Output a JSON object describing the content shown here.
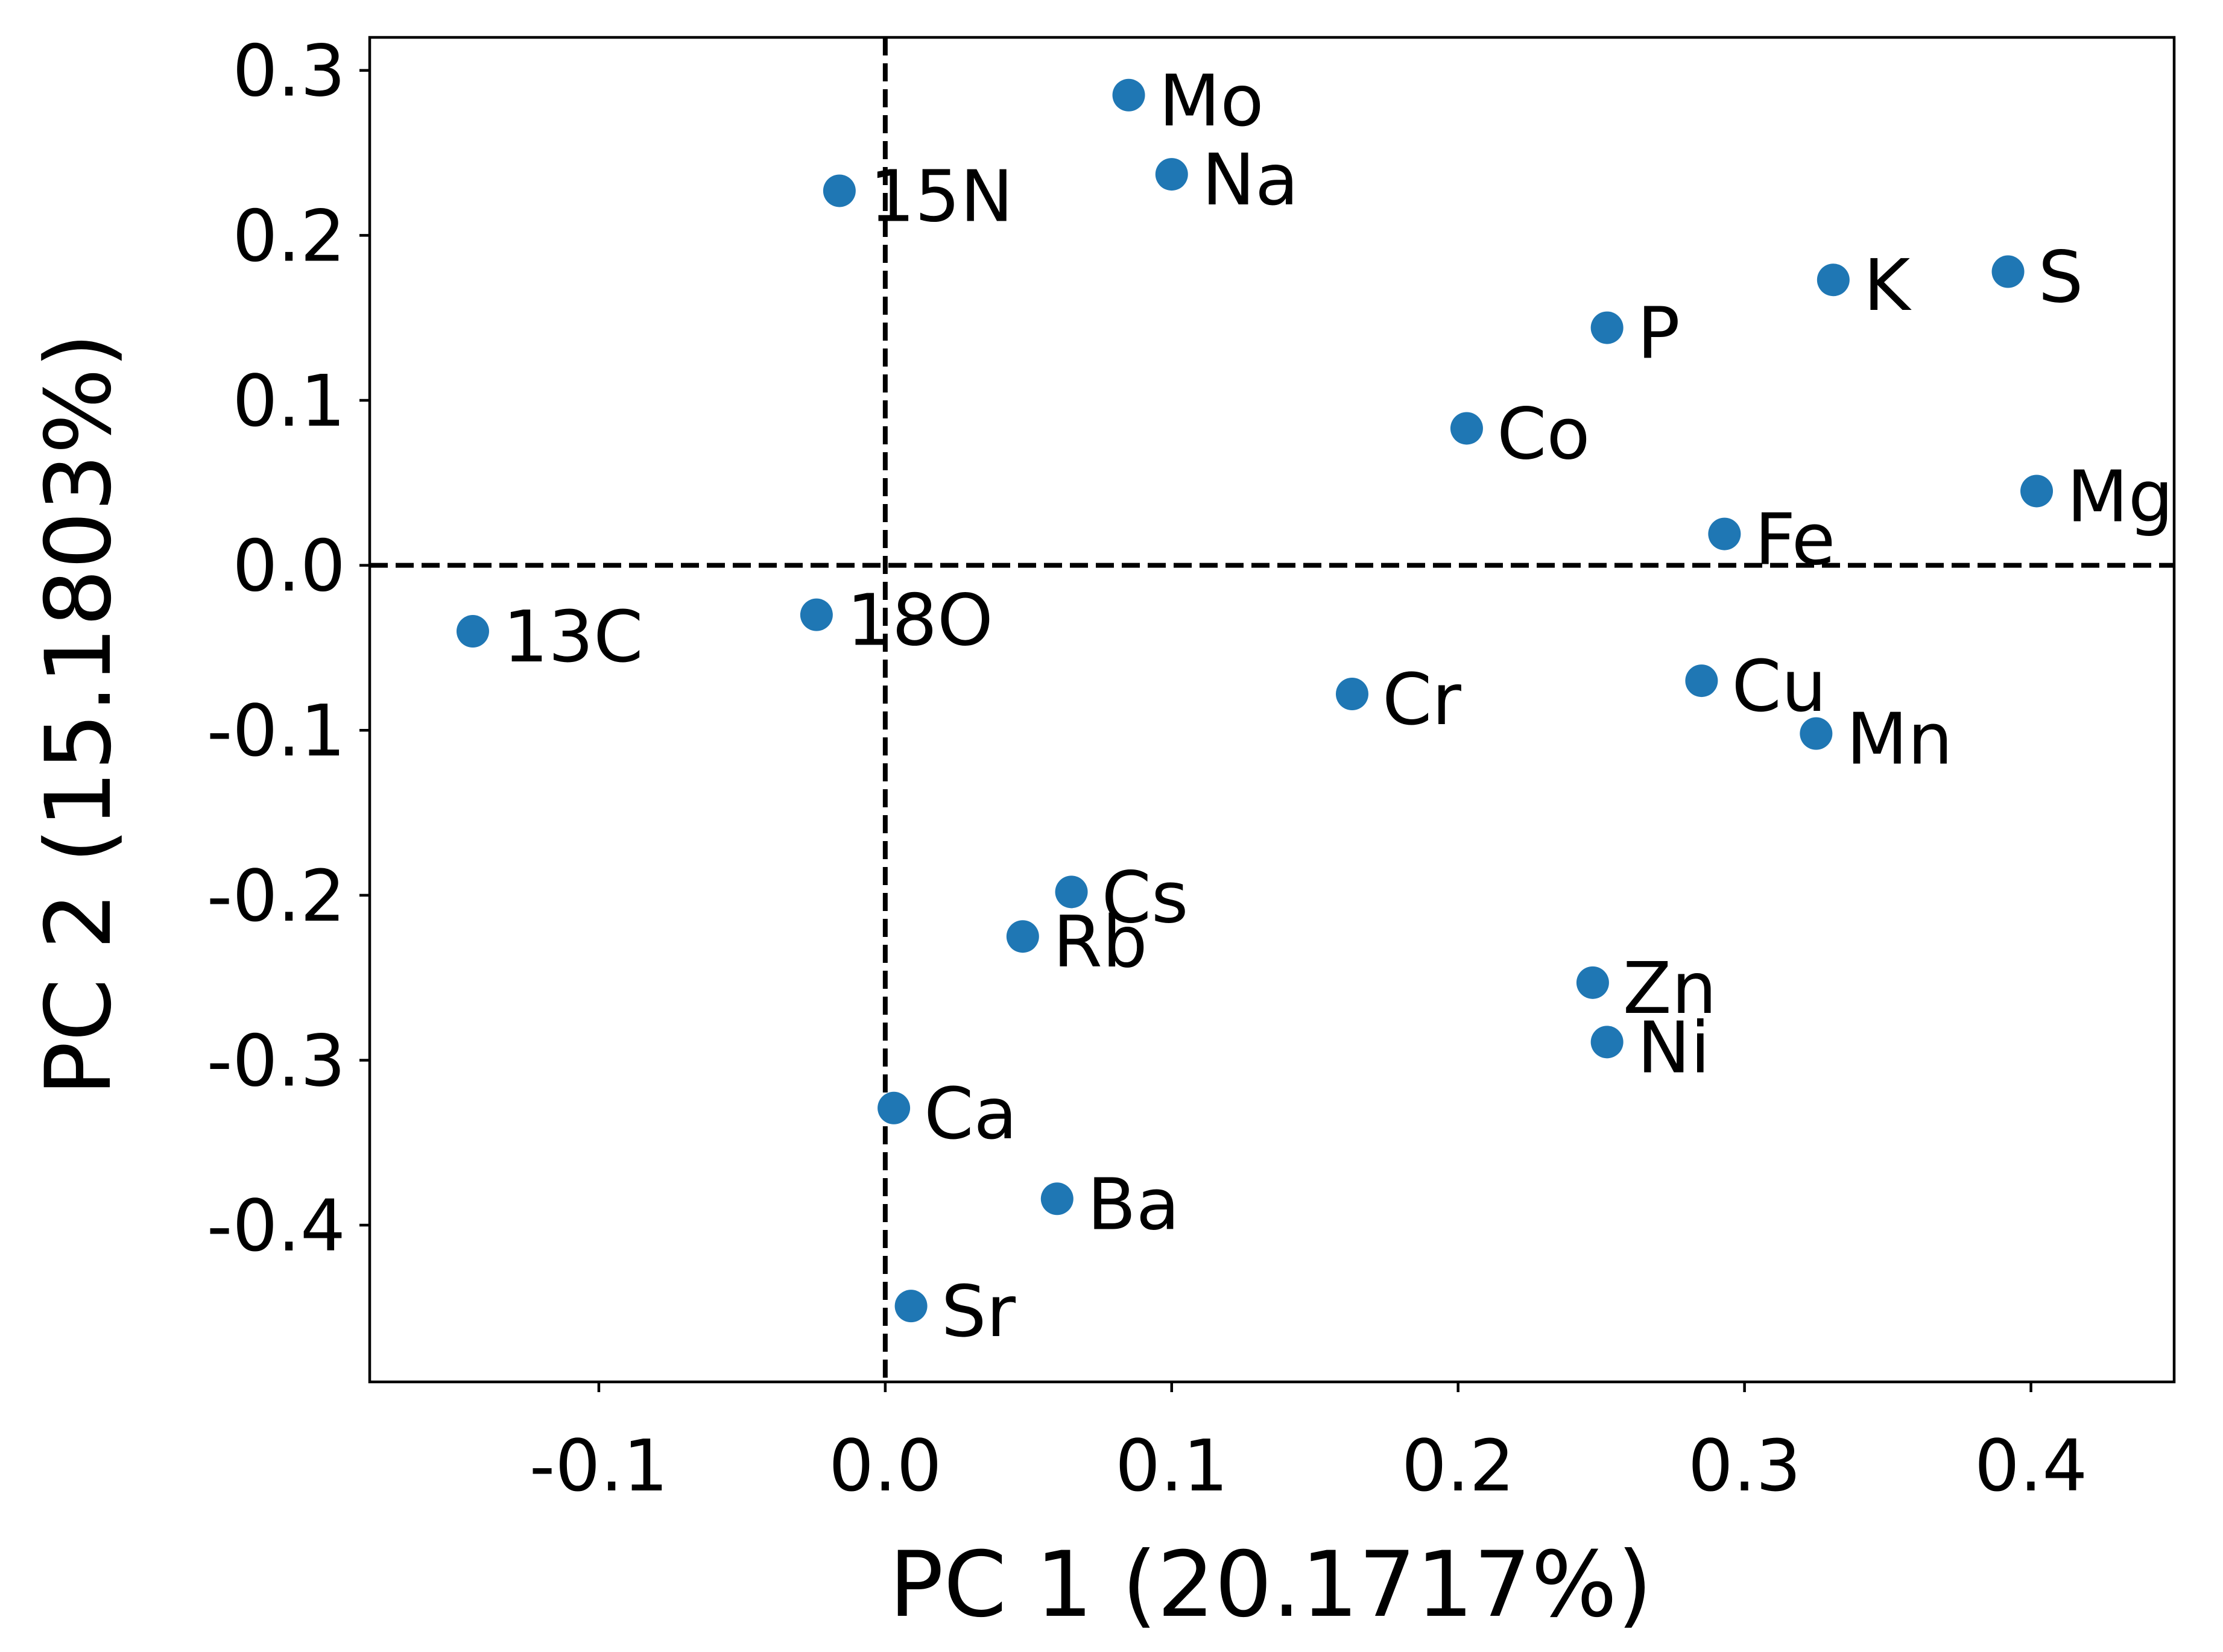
{
  "chart_data": {
    "type": "scatter",
    "xlabel": "PC 1 (20.1717%)",
    "ylabel": "PC 2 (15.1803%)",
    "xlim": [
      -0.18,
      0.45
    ],
    "ylim": [
      -0.495,
      0.32
    ],
    "x_ticks": [
      {
        "value": -0.1,
        "label": "-0.1"
      },
      {
        "value": 0.0,
        "label": "0.0"
      },
      {
        "value": 0.1,
        "label": "0.1"
      },
      {
        "value": 0.2,
        "label": "0.2"
      },
      {
        "value": 0.3,
        "label": "0.3"
      },
      {
        "value": 0.4,
        "label": "0.4"
      }
    ],
    "y_ticks": [
      {
        "value": -0.4,
        "label": "-0.4"
      },
      {
        "value": -0.3,
        "label": "-0.3"
      },
      {
        "value": -0.2,
        "label": "-0.2"
      },
      {
        "value": -0.1,
        "label": "-0.1"
      },
      {
        "value": 0.0,
        "label": "0.0"
      },
      {
        "value": 0.1,
        "label": "0.1"
      },
      {
        "value": 0.2,
        "label": "0.2"
      },
      {
        "value": 0.3,
        "label": "0.3"
      }
    ],
    "reference_lines": {
      "x": 0,
      "y": 0,
      "style": "dashed"
    },
    "grid": false,
    "marker_color": "#1f77b4",
    "points": [
      {
        "label": "Mo",
        "x": 0.085,
        "y": 0.285
      },
      {
        "label": "Na",
        "x": 0.1,
        "y": 0.237
      },
      {
        "label": "15N",
        "x": -0.016,
        "y": 0.227
      },
      {
        "label": "S",
        "x": 0.392,
        "y": 0.178
      },
      {
        "label": "K",
        "x": 0.331,
        "y": 0.173
      },
      {
        "label": "P",
        "x": 0.252,
        "y": 0.144
      },
      {
        "label": "Co",
        "x": 0.203,
        "y": 0.083
      },
      {
        "label": "Mg",
        "x": 0.402,
        "y": 0.045
      },
      {
        "label": "Fe",
        "x": 0.293,
        "y": 0.019
      },
      {
        "label": "13C",
        "x": -0.144,
        "y": -0.04
      },
      {
        "label": "18O",
        "x": -0.024,
        "y": -0.03
      },
      {
        "label": "Cr",
        "x": 0.163,
        "y": -0.078
      },
      {
        "label": "Cu",
        "x": 0.285,
        "y": -0.07
      },
      {
        "label": "Mn",
        "x": 0.325,
        "y": -0.102
      },
      {
        "label": "Cs",
        "x": 0.065,
        "y": -0.198
      },
      {
        "label": "Rb",
        "x": 0.048,
        "y": -0.225
      },
      {
        "label": "Zn",
        "x": 0.247,
        "y": -0.253
      },
      {
        "label": "Ni",
        "x": 0.252,
        "y": -0.289
      },
      {
        "label": "Ca",
        "x": 0.003,
        "y": -0.329
      },
      {
        "label": "Ba",
        "x": 0.06,
        "y": -0.384
      },
      {
        "label": "Sr",
        "x": 0.009,
        "y": -0.449
      }
    ]
  }
}
